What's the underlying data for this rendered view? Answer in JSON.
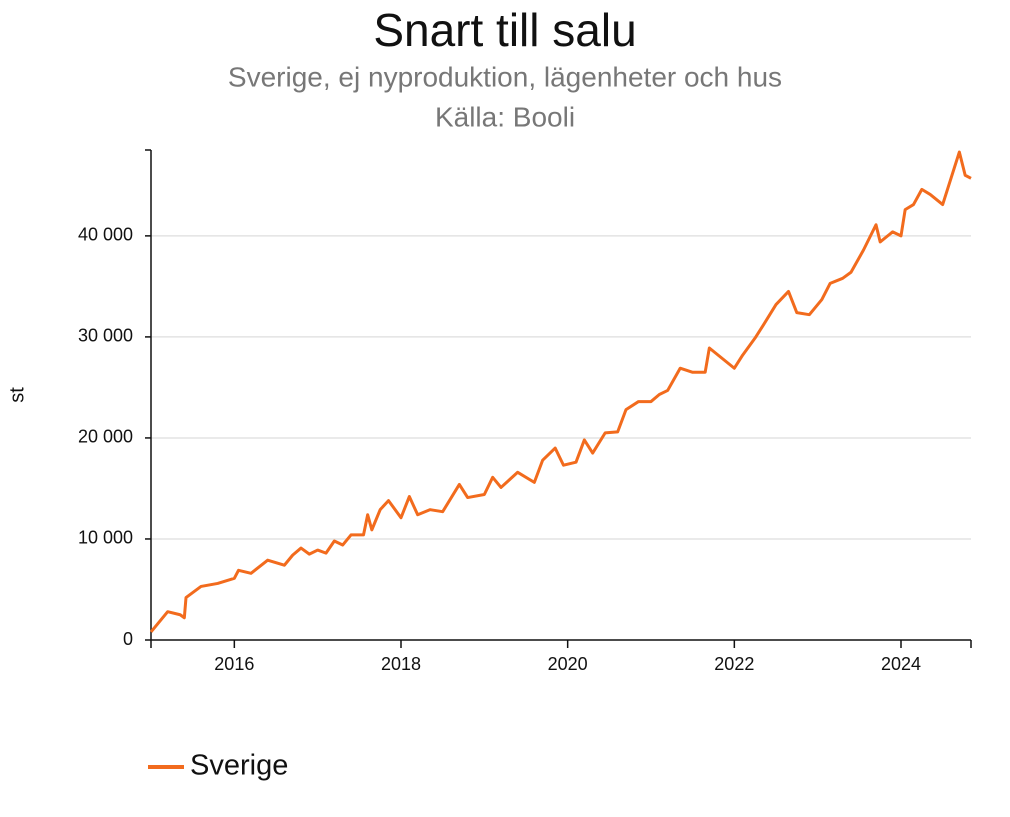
{
  "chart_data": {
    "type": "line",
    "title": "Snart till salu",
    "subtitle": "Sverige, ej nyproduktion, lägenheter och hus",
    "source": "Källa: Booli",
    "y_label": "st",
    "xlim": [
      2015.0,
      2024.84
    ],
    "xticks": [
      2016,
      2018,
      2020,
      2022,
      2024
    ],
    "ylim": [
      0,
      48500
    ],
    "yticks": [
      0,
      {
        "value": 10000,
        "label": "10 000"
      },
      {
        "value": 20000,
        "label": "20 000"
      },
      {
        "value": 30000,
        "label": "30 000"
      },
      {
        "value": 40000,
        "label": "40 000"
      }
    ],
    "grid": true,
    "x": [
      2015.0,
      2015.2,
      2015.35,
      2015.4,
      2015.42,
      2015.6,
      2015.8,
      2016.0,
      2016.05,
      2016.2,
      2016.4,
      2016.6,
      2016.7,
      2016.8,
      2016.9,
      2017.0,
      2017.1,
      2017.2,
      2017.3,
      2017.4,
      2017.55,
      2017.6,
      2017.65,
      2017.75,
      2017.85,
      2018.0,
      2018.1,
      2018.2,
      2018.35,
      2018.5,
      2018.7,
      2018.8,
      2019.0,
      2019.1,
      2019.2,
      2019.4,
      2019.6,
      2019.7,
      2019.85,
      2019.95,
      2020.1,
      2020.2,
      2020.3,
      2020.45,
      2020.6,
      2020.7,
      2020.85,
      2021.0,
      2021.1,
      2021.2,
      2021.35,
      2021.5,
      2021.65,
      2021.7,
      2021.85,
      2022.0,
      2022.1,
      2022.25,
      2022.35,
      2022.5,
      2022.65,
      2022.75,
      2022.9,
      2023.05,
      2023.15,
      2023.3,
      2023.4,
      2023.55,
      2023.7,
      2023.75,
      2023.9,
      2024.0,
      2024.05,
      2024.15,
      2024.25,
      2024.35,
      2024.5,
      2024.6,
      2024.7,
      2024.77,
      2024.84
    ],
    "series": [
      {
        "name": "Sverige",
        "color": "#f26b1d",
        "values": [
          800,
          2800,
          2500,
          2200,
          4200,
          5300,
          5600,
          6100,
          6900,
          6600,
          7900,
          7400,
          8400,
          9100,
          8500,
          8900,
          8600,
          9800,
          9400,
          10400,
          10400,
          12400,
          10900,
          12900,
          13800,
          12100,
          14200,
          12400,
          12900,
          12700,
          15400,
          14100,
          14400,
          16100,
          15100,
          16600,
          15600,
          17800,
          19000,
          17300,
          17600,
          19800,
          18500,
          20500,
          20600,
          22800,
          23600,
          23600,
          24300,
          24700,
          26900,
          26500,
          26500,
          28900,
          27900,
          26900,
          28200,
          29900,
          31200,
          33200,
          34500,
          32400,
          32200,
          33700,
          35300,
          35800,
          36400,
          38600,
          41100,
          39400,
          40400,
          40000,
          42600,
          43100,
          44600,
          44100,
          43100,
          45700,
          48300,
          46000,
          45700
        ]
      }
    ]
  }
}
